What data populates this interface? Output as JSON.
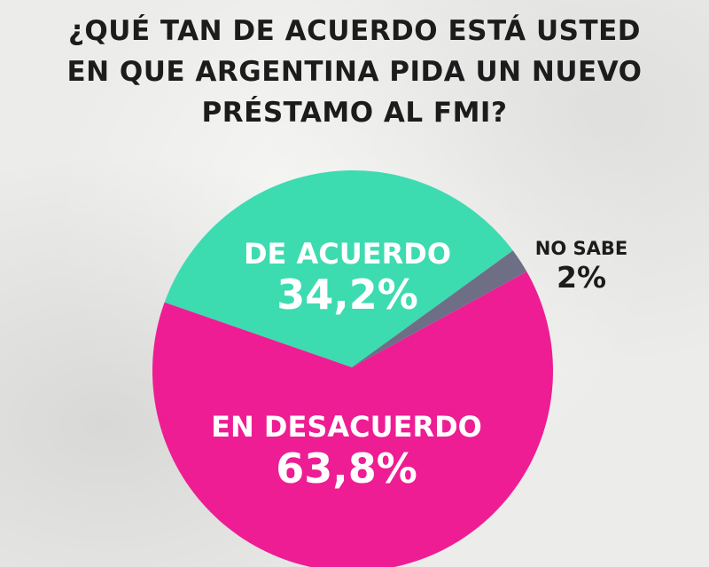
{
  "title": {
    "line1": "¿QUÉ TAN DE ACUERDO ESTÁ USTED",
    "line2": "EN QUE ARGENTINA PIDA UN NUEVO",
    "line3": "PRÉSTAMO AL FMI?"
  },
  "chart_data": {
    "type": "pie",
    "title": "¿QUÉ TAN DE ACUERDO ESTÁ USTED EN QUE ARGENTINA PIDA UN NUEVO PRÉSTAMO AL FMI?",
    "slices": [
      {
        "label": "DE ACUERDO",
        "value": 34.2,
        "value_label": "34,2%",
        "color": "#3ddbb0"
      },
      {
        "label": "NO SABE",
        "value": 2,
        "value_label": "2%",
        "color": "#6e6f86"
      },
      {
        "label": "EN DESACUERDO",
        "value": 63.8,
        "value_label": "63,8%",
        "color": "#ee1d93"
      }
    ],
    "legend": "none"
  },
  "colors": {
    "title_text": "#1c1c1c",
    "inside_label": "#ffffff",
    "outside_label": "#1c1c1c"
  }
}
